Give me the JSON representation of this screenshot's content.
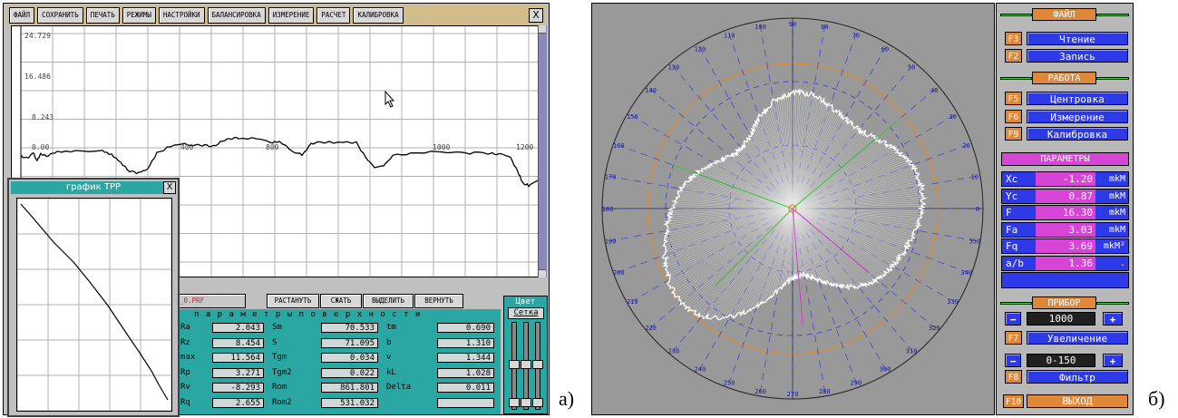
{
  "labels": {
    "a": "а)",
    "b": "б)"
  },
  "panel_a": {
    "menu": [
      "ФАЙЛ",
      "СОХРАНИТЬ",
      "ПЕЧАТЬ",
      "РЕЖИМЫ",
      "НАСТРОЙКИ",
      "БАЛАНСИРОВКА",
      "ИЗМЕРЕНИЕ",
      "РАСЧЕТ",
      "КАЛИБРОВКА"
    ],
    "close": "X",
    "main_plot": {
      "y_ticks": [
        "24.729",
        "16.486",
        "8.243",
        "0.00"
      ],
      "x_ticks": [
        "400",
        "800",
        "1000",
        "1200"
      ]
    },
    "tpp": {
      "title": "график TPP",
      "close": "X"
    },
    "file_name": "_0.PRF",
    "buttons": [
      "РАСТАНУТЬ",
      "СЖАТЬ",
      "ВЫДЕЛИТЬ",
      "ВЕРНУТЬ"
    ],
    "params_header": "п а р а м е т р ы     п о в е р х н о с т и",
    "params": [
      {
        "n1": "Ra",
        "v1": "2.043",
        "n2": "Sm",
        "v2": "70.533",
        "n3": "tm",
        "v3": "0.690"
      },
      {
        "n1": "Rz",
        "v1": "8.454",
        "n2": "S",
        "v2": "71.095",
        "n3": "b",
        "v3": "1.310"
      },
      {
        "n1": "max",
        "v1": "11.564",
        "n2": "Tgm",
        "v2": "0.034",
        "n3": "v",
        "v3": "1.344"
      },
      {
        "n1": "Rp",
        "v1": "3.271",
        "n2": "Tgm2",
        "v2": "0.022",
        "n3": "kL",
        "v3": "1.028"
      },
      {
        "n1": "Rv",
        "v1": "-8.293",
        "n2": "Rom",
        "v2": "861.801",
        "n3": "Delta",
        "v3": "0.011"
      },
      {
        "n1": "Rq",
        "v1": "2.655",
        "n2": "Rom2",
        "v2": "531.032",
        "n3": "",
        "v3": ""
      }
    ],
    "color_panel": {
      "title": "Цвет",
      "sub": "Сетка"
    }
  },
  "panel_b": {
    "angle_labels": [
      "10",
      "20",
      "30",
      "40",
      "50",
      "60",
      "70",
      "80",
      "90",
      "100",
      "110",
      "120",
      "130",
      "140",
      "150",
      "160",
      "170",
      "180",
      "190",
      "200",
      "210",
      "220",
      "230",
      "240",
      "250",
      "260",
      "270",
      "280",
      "290",
      "300",
      "310",
      "320",
      "330",
      "340",
      "350",
      "0"
    ],
    "sections": {
      "file": "ФАЙЛ",
      "work": "РАБОТА",
      "params": "ПАРАМЕТРЫ",
      "device": "ПРИБОР"
    },
    "file_items": [
      {
        "key": "F3",
        "label": "Чтение"
      },
      {
        "key": "F2",
        "label": "Запись"
      }
    ],
    "work_items": [
      {
        "key": "F5",
        "label": "Центровка"
      },
      {
        "key": "F6",
        "label": "Измерение"
      },
      {
        "key": "F9",
        "label": "Калибровка"
      }
    ],
    "params": [
      {
        "name": "Xc",
        "value": "-1.20",
        "unit": "mkM"
      },
      {
        "name": "Yc",
        "value": "0.87",
        "unit": "mkM"
      },
      {
        "name": "F",
        "value": "16.30",
        "unit": "mkM"
      },
      {
        "name": "Fa",
        "value": "3.03",
        "unit": "mkM"
      },
      {
        "name": "Fq",
        "value": "3.69",
        "unit": "mkM²"
      },
      {
        "name": "a/b",
        "value": "1.36",
        "unit": "."
      }
    ],
    "device": {
      "minus": "−",
      "plus": "+",
      "zoom_value": "1000",
      "zoom_key": "F7",
      "zoom_label": "Увеличение",
      "filter_value": "0-150",
      "filter_key": "F8",
      "filter_label": "Фильтр"
    },
    "exit_key": "F10",
    "exit_label": "ВЫХОД"
  }
}
